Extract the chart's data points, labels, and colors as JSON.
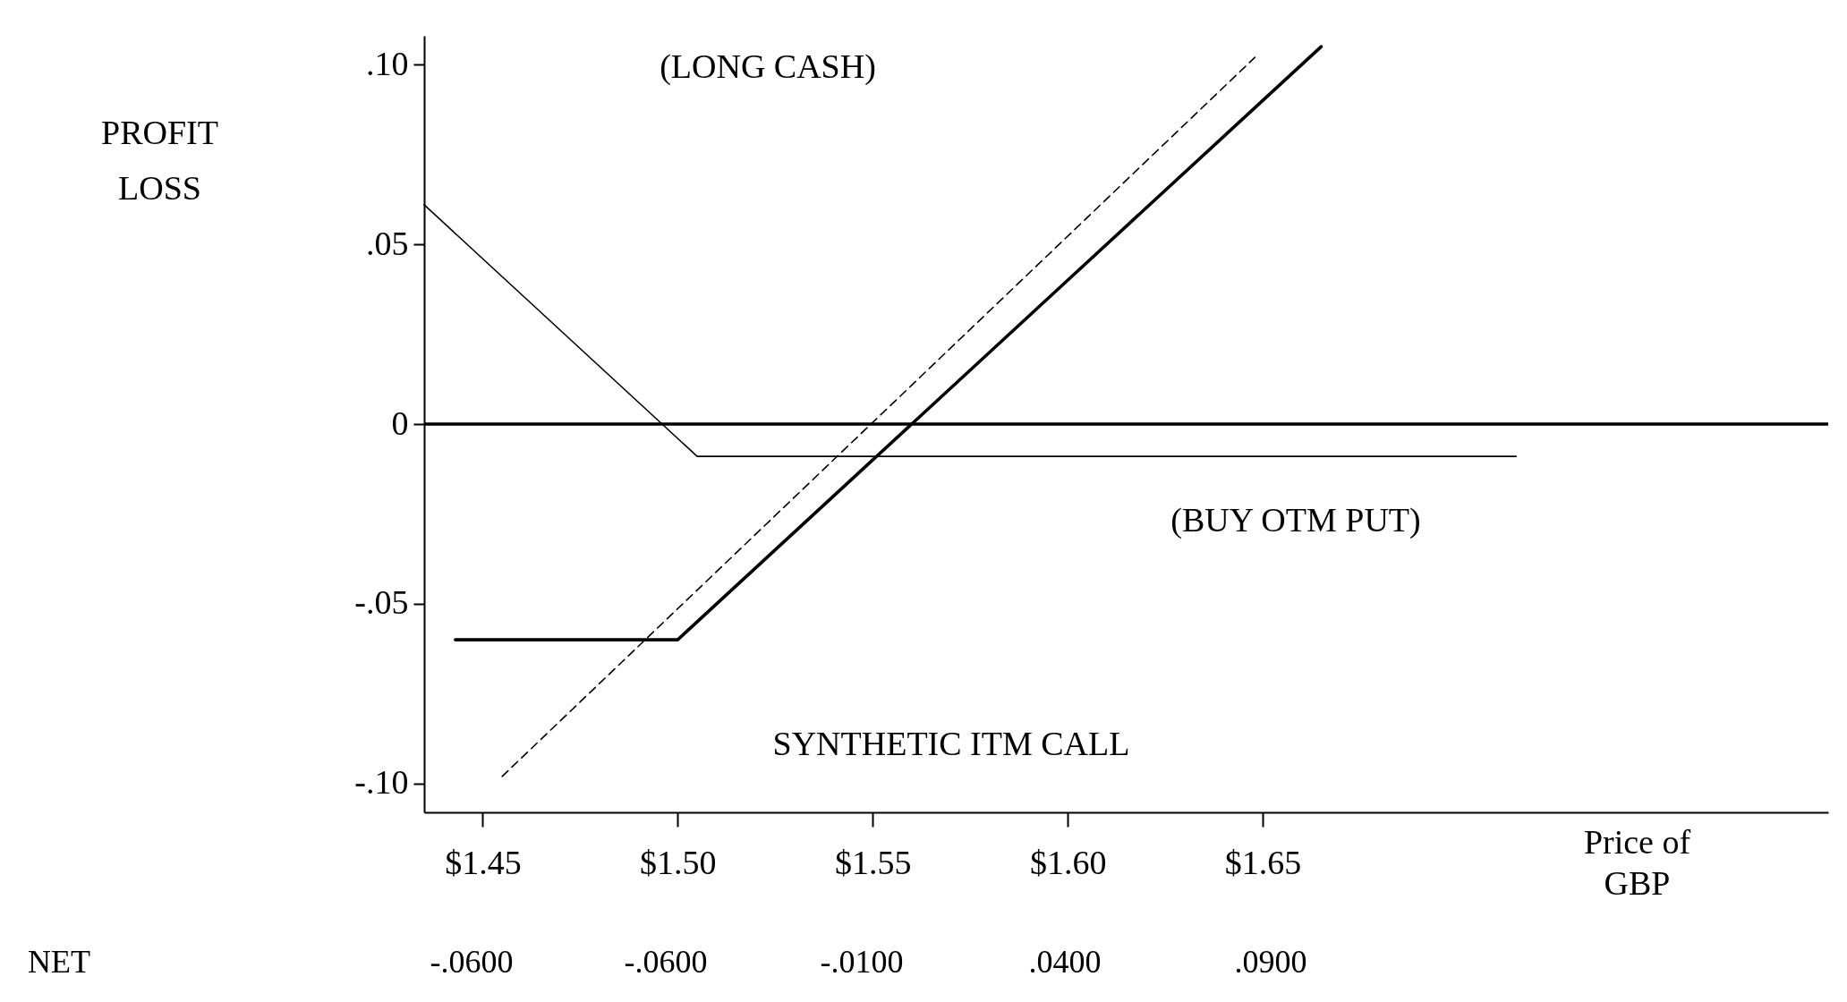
{
  "chart_data": {
    "type": "line",
    "ylabel": "PROFIT\nLOSS",
    "xlabel": "Price of\nGBP",
    "xlim": [
      1.435,
      1.795
    ],
    "ylim": [
      -0.108,
      0.108
    ],
    "xticks": [
      {
        "value": 1.45,
        "label": "$1.45"
      },
      {
        "value": 1.5,
        "label": "$1.50"
      },
      {
        "value": 1.55,
        "label": "$1.55"
      },
      {
        "value": 1.6,
        "label": "$1.60"
      },
      {
        "value": 1.65,
        "label": "$1.65"
      }
    ],
    "yticks": [
      {
        "value": 0.1,
        "label": ".10"
      },
      {
        "value": 0.05,
        "label": ".05"
      },
      {
        "value": 0,
        "label": "0"
      },
      {
        "value": -0.05,
        "label": "-.05"
      },
      {
        "value": -0.1,
        "label": "-.10"
      }
    ],
    "grid": false,
    "marker": "none",
    "series": [
      {
        "color": "#000000",
        "line_style": "dashed",
        "x": [
          1.455,
          1.648
        ],
        "values": [
          -0.098,
          0.102
        ]
      },
      {
        "color": "#000000",
        "line_style": "solid",
        "x": [
          1.435,
          1.505,
          1.715
        ],
        "values": [
          0.061,
          -0.009,
          -0.009
        ]
      },
      {
        "color": "#000000",
        "line_style": "solid",
        "x": [
          1.443,
          1.45,
          1.5,
          1.55,
          1.6,
          1.65,
          1.665
        ],
        "values": [
          -0.06,
          -0.06,
          -0.06,
          -0.01,
          0.04,
          0.09,
          0.105
        ]
      }
    ],
    "ref_lines": [
      {
        "axis": "y",
        "value": 0,
        "color": "#000000"
      }
    ],
    "annotations": [
      "(LONG CASH)",
      "(BUY OTM PUT)",
      "SYNTHETIC ITM CALL",
      "NET",
      "-.0600",
      "-.0600",
      "-.0100",
      ".0400",
      ".0900"
    ]
  }
}
